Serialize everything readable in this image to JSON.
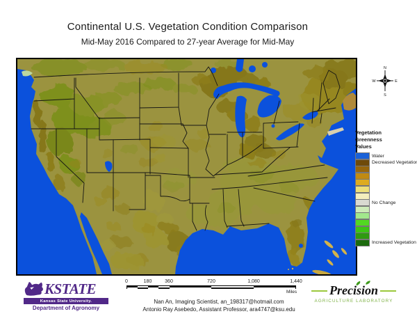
{
  "header": {
    "title": "Continental U.S. Vegetation Condition Comparison",
    "subtitle": "Mid-May 2016 Compared to 27-year Average for Mid-May"
  },
  "compass": {
    "north": "N",
    "south": "S",
    "east": "E",
    "west": "W"
  },
  "legend": {
    "title_lines": [
      "Vegetation",
      "Greenness",
      "Values"
    ],
    "items": [
      {
        "color": "#1b62d8",
        "label": "Water"
      },
      {
        "color": "#6e4a0a",
        "label": "Decreased Vegetation"
      },
      {
        "color": "#96660c",
        "label": ""
      },
      {
        "color": "#c08a12",
        "label": ""
      },
      {
        "color": "#ddab20",
        "label": ""
      },
      {
        "color": "#ecdf7a",
        "label": ""
      },
      {
        "color": "#f3eebd",
        "label": ""
      },
      {
        "color": "#d9d9d1",
        "label": "No Change"
      },
      {
        "color": "#cdeab8",
        "label": ""
      },
      {
        "color": "#a2e88c",
        "label": ""
      },
      {
        "color": "#52d822",
        "label": ""
      },
      {
        "color": "#3cc414",
        "label": ""
      },
      {
        "color": "#2f9a10",
        "label": ""
      },
      {
        "color": "#1c6b0e",
        "label": "Increased Vegetation"
      }
    ]
  },
  "scalebar": {
    "labels": [
      "0",
      "180",
      "360",
      "720",
      "1,080",
      "1,440"
    ],
    "unit": "Miles"
  },
  "credits": {
    "line1": "Nan An, Imaging Scientist, an_198317@hotmail.com",
    "line2": "Antonio Ray Asebedo, Assistant Professor, ara4747@ksu.edu"
  },
  "logos": {
    "kstate": {
      "wordmark": "KSTATE",
      "university": "Kansas State University.",
      "department": "Department of Agronomy"
    },
    "precision": {
      "name": "Precision",
      "subtitle": "AGRICULTURE LABORATORY"
    }
  },
  "map": {
    "ocean_color": "#0b51dc",
    "land_color": "#dedbd2"
  }
}
